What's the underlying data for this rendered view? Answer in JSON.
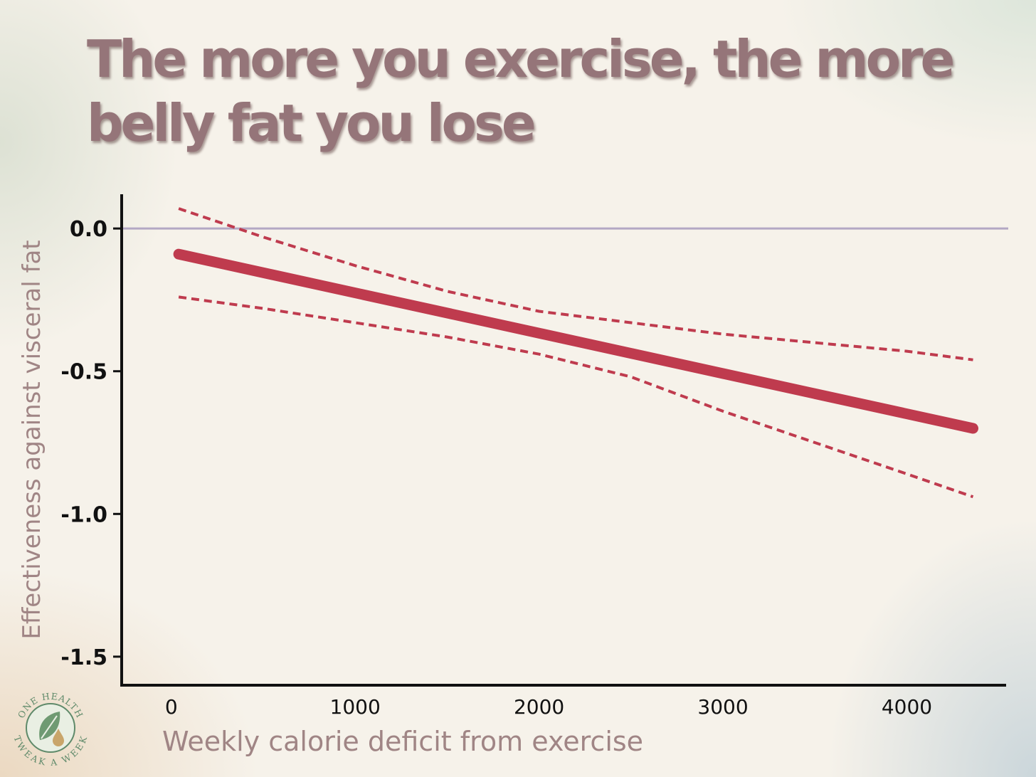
{
  "title": "The more you exercise, the more belly fat you lose",
  "colors": {
    "title": "#957579",
    "axis_label": "#a08585",
    "fit_line": "#bf3b4e",
    "confidence_band": "#bf3b4e",
    "reference_line": "#b3a8c4",
    "axis": "#111111"
  },
  "logo": {
    "text": "ONE HEALTH TWEAK A WEEK",
    "icon": "leaf-drop-icon"
  },
  "chart_data": {
    "type": "line",
    "xlabel": "Weekly calorie deficit from exercise",
    "ylabel": "Effectiveness against visceral fat",
    "xlim": [
      -270,
      4540
    ],
    "ylim": [
      -1.6,
      0.12
    ],
    "x_ticks": [
      0,
      1000,
      2000,
      3000,
      4000
    ],
    "x_tick_labels": [
      "0",
      "1000",
      "2000",
      "3000",
      "4000"
    ],
    "y_ticks": [
      0.0,
      -0.5,
      -1.0,
      -1.5
    ],
    "y_tick_labels": [
      "0.0",
      "-0.5",
      "-1.0",
      "-1.5"
    ],
    "reference_line_y": 0.0,
    "grid": false,
    "legend": "none",
    "series": [
      {
        "style": "solid",
        "x": [
          40,
          4360
        ],
        "y": [
          -0.09,
          -0.7
        ]
      },
      {
        "style": "dashed",
        "x": [
          40,
          500,
          1000,
          1500,
          2000,
          2500,
          3000,
          3500,
          4000,
          4360
        ],
        "y": [
          0.07,
          -0.03,
          -0.13,
          -0.22,
          -0.29,
          -0.33,
          -0.37,
          -0.4,
          -0.43,
          -0.46
        ]
      },
      {
        "style": "dashed",
        "x": [
          40,
          500,
          1000,
          1500,
          2000,
          2500,
          3000,
          3500,
          4000,
          4360
        ],
        "y": [
          -0.24,
          -0.28,
          -0.33,
          -0.38,
          -0.44,
          -0.52,
          -0.64,
          -0.75,
          -0.86,
          -0.94
        ]
      }
    ]
  }
}
